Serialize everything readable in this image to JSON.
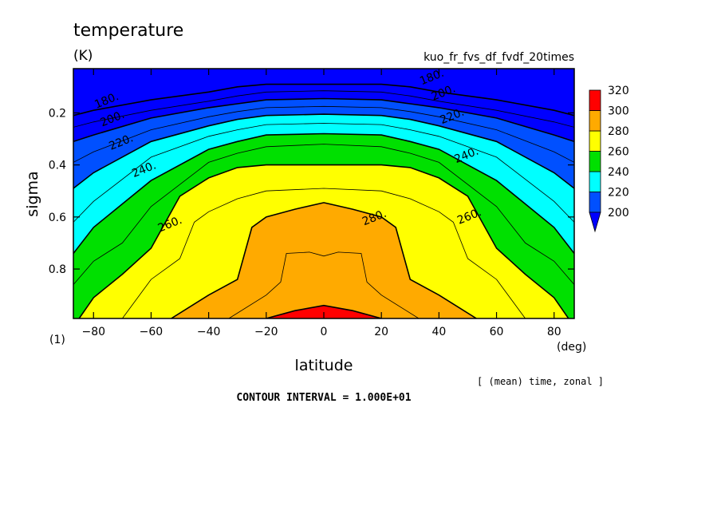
{
  "chart_data": {
    "type": "heatmap",
    "title": "temperature",
    "units": "(K)",
    "run_name": "kuo_fr_fvs_df_fvdf_20times",
    "xlabel": "latitude",
    "x_units": "(deg)",
    "ylabel": "sigma",
    "y_units": "(1)",
    "averaging_note": "[ (mean) time, zonal ]",
    "contour_interval_text": "CONTOUR INTERVAL = 1.000E+01",
    "xlim": [
      -87,
      87
    ],
    "ylim": [
      0.03,
      0.99
    ],
    "y_inverted": true,
    "x_ticks": [
      -80,
      -60,
      -40,
      -20,
      0,
      20,
      40,
      60,
      80
    ],
    "x_tick_labels": [
      "−80",
      "−60",
      "−40",
      "−20",
      "0",
      "20",
      "40",
      "60",
      "80"
    ],
    "y_ticks": [
      0.2,
      0.4,
      0.6,
      0.8
    ],
    "y_tick_labels": [
      "0.2",
      "0.4",
      "0.6",
      "0.8"
    ],
    "colorbar": {
      "levels": [
        200,
        220,
        240,
        260,
        280,
        300,
        320
      ],
      "labels": [
        "200",
        "220",
        "240",
        "260",
        "280",
        "300",
        "320"
      ],
      "colors": [
        "#0050ff",
        "#00ffff",
        "#00e000",
        "#ffff00",
        "#ffaa00",
        "#ff0000"
      ],
      "below_color": "#0000ff",
      "extend": "min"
    },
    "contour_levels": [
      180,
      190,
      200,
      210,
      220,
      230,
      240,
      250,
      260,
      270,
      280,
      290,
      300,
      310
    ],
    "bands": [
      {
        "lower": 200,
        "upper": 220,
        "color": "#0050ff"
      },
      {
        "lower": 220,
        "upper": 240,
        "color": "#00ffff"
      },
      {
        "lower": 240,
        "upper": 260,
        "color": "#00e000"
      },
      {
        "lower": 260,
        "upper": 280,
        "color": "#ffff00"
      },
      {
        "lower": 280,
        "upper": 300,
        "color": "#ffaa00"
      },
      {
        "lower": 300,
        "upper": 320,
        "color": "#ff0000"
      }
    ],
    "contours": [
      {
        "level": 180,
        "label": "180.",
        "points": [
          [
            -87,
            0.21
          ],
          [
            -80,
            0.19
          ],
          [
            -60,
            0.15
          ],
          [
            -40,
            0.12
          ],
          [
            -30,
            0.1
          ],
          [
            -20,
            0.09
          ],
          [
            0,
            0.09
          ],
          [
            20,
            0.09
          ],
          [
            30,
            0.1
          ],
          [
            40,
            0.12
          ],
          [
            60,
            0.15
          ],
          [
            80,
            0.19
          ],
          [
            87,
            0.21
          ]
        ]
      },
      {
        "level": 190,
        "label": "",
        "points": [
          [
            -87,
            0.255
          ],
          [
            -80,
            0.235
          ],
          [
            -60,
            0.19
          ],
          [
            -40,
            0.155
          ],
          [
            -30,
            0.135
          ],
          [
            -20,
            0.12
          ],
          [
            0,
            0.115
          ],
          [
            20,
            0.12
          ],
          [
            30,
            0.135
          ],
          [
            40,
            0.155
          ],
          [
            60,
            0.19
          ],
          [
            80,
            0.235
          ],
          [
            87,
            0.255
          ]
        ]
      },
      {
        "level": 200,
        "label": "200.",
        "points": [
          [
            -87,
            0.31
          ],
          [
            -80,
            0.285
          ],
          [
            -60,
            0.22
          ],
          [
            -40,
            0.18
          ],
          [
            -30,
            0.165
          ],
          [
            -20,
            0.15
          ],
          [
            0,
            0.145
          ],
          [
            20,
            0.15
          ],
          [
            30,
            0.165
          ],
          [
            40,
            0.18
          ],
          [
            60,
            0.22
          ],
          [
            80,
            0.285
          ],
          [
            87,
            0.31
          ]
        ]
      },
      {
        "level": 210,
        "label": "",
        "points": [
          [
            -87,
            0.39
          ],
          [
            -80,
            0.35
          ],
          [
            -60,
            0.265
          ],
          [
            -40,
            0.215
          ],
          [
            -30,
            0.195
          ],
          [
            -20,
            0.18
          ],
          [
            0,
            0.175
          ],
          [
            20,
            0.18
          ],
          [
            30,
            0.195
          ],
          [
            40,
            0.215
          ],
          [
            60,
            0.265
          ],
          [
            80,
            0.35
          ],
          [
            87,
            0.39
          ]
        ]
      },
      {
        "level": 220,
        "label": "220.",
        "points": [
          [
            -87,
            0.49
          ],
          [
            -80,
            0.43
          ],
          [
            -60,
            0.31
          ],
          [
            -40,
            0.25
          ],
          [
            -30,
            0.225
          ],
          [
            -20,
            0.21
          ],
          [
            0,
            0.205
          ],
          [
            20,
            0.21
          ],
          [
            30,
            0.225
          ],
          [
            40,
            0.25
          ],
          [
            60,
            0.31
          ],
          [
            80,
            0.43
          ],
          [
            87,
            0.49
          ]
        ]
      },
      {
        "level": 230,
        "label": "",
        "points": [
          [
            -87,
            0.62
          ],
          [
            -80,
            0.54
          ],
          [
            -60,
            0.37
          ],
          [
            -40,
            0.29
          ],
          [
            -30,
            0.265
          ],
          [
            -20,
            0.245
          ],
          [
            0,
            0.24
          ],
          [
            20,
            0.245
          ],
          [
            30,
            0.265
          ],
          [
            40,
            0.29
          ],
          [
            60,
            0.37
          ],
          [
            80,
            0.54
          ],
          [
            87,
            0.62
          ]
        ]
      },
      {
        "level": 240,
        "label": "240.",
        "points": [
          [
            -87,
            0.74
          ],
          [
            -80,
            0.64
          ],
          [
            -60,
            0.46
          ],
          [
            -40,
            0.34
          ],
          [
            -30,
            0.31
          ],
          [
            -20,
            0.285
          ],
          [
            0,
            0.28
          ],
          [
            20,
            0.285
          ],
          [
            30,
            0.31
          ],
          [
            40,
            0.34
          ],
          [
            60,
            0.46
          ],
          [
            80,
            0.64
          ],
          [
            87,
            0.74
          ]
        ]
      },
      {
        "level": 250,
        "label": "",
        "points": [
          [
            -87,
            0.86
          ],
          [
            -80,
            0.77
          ],
          [
            -70,
            0.7
          ],
          [
            -60,
            0.56
          ],
          [
            -40,
            0.39
          ],
          [
            -30,
            0.355
          ],
          [
            -20,
            0.33
          ],
          [
            0,
            0.32
          ],
          [
            20,
            0.33
          ],
          [
            30,
            0.355
          ],
          [
            40,
            0.39
          ],
          [
            60,
            0.56
          ],
          [
            70,
            0.7
          ],
          [
            80,
            0.77
          ],
          [
            87,
            0.86
          ]
        ]
      },
      {
        "level": 260,
        "label": "260.",
        "points": [
          [
            -85,
            0.99
          ],
          [
            -80,
            0.91
          ],
          [
            -70,
            0.82
          ],
          [
            -60,
            0.72
          ],
          [
            -50,
            0.52
          ],
          [
            -40,
            0.45
          ],
          [
            -30,
            0.41
          ],
          [
            -20,
            0.4
          ],
          [
            0,
            0.4
          ],
          [
            20,
            0.4
          ],
          [
            30,
            0.41
          ],
          [
            40,
            0.45
          ],
          [
            50,
            0.52
          ],
          [
            60,
            0.72
          ],
          [
            70,
            0.82
          ],
          [
            80,
            0.91
          ],
          [
            85,
            0.99
          ]
        ]
      },
      {
        "level": 270,
        "label": "",
        "points": [
          [
            -70,
            0.99
          ],
          [
            -60,
            0.84
          ],
          [
            -50,
            0.76
          ],
          [
            -45,
            0.62
          ],
          [
            -40,
            0.58
          ],
          [
            -30,
            0.53
          ],
          [
            -20,
            0.5
          ],
          [
            0,
            0.49
          ],
          [
            20,
            0.5
          ],
          [
            30,
            0.53
          ],
          [
            40,
            0.58
          ],
          [
            45,
            0.62
          ],
          [
            50,
            0.76
          ],
          [
            60,
            0.84
          ],
          [
            70,
            0.99
          ]
        ]
      },
      {
        "level": 280,
        "label": "280.",
        "points": [
          [
            -53,
            0.99
          ],
          [
            -40,
            0.9
          ],
          [
            -30,
            0.84
          ],
          [
            -25,
            0.64
          ],
          [
            -20,
            0.6
          ],
          [
            -10,
            0.57
          ],
          [
            0,
            0.545
          ],
          [
            10,
            0.57
          ],
          [
            20,
            0.6
          ],
          [
            25,
            0.64
          ],
          [
            30,
            0.84
          ],
          [
            40,
            0.9
          ],
          [
            53,
            0.99
          ]
        ]
      },
      {
        "level": 290,
        "label": "",
        "points": [
          [
            -33,
            0.99
          ],
          [
            -20,
            0.9
          ],
          [
            -15,
            0.85
          ],
          [
            -13,
            0.74
          ],
          [
            -5,
            0.735
          ],
          [
            0,
            0.75
          ],
          [
            5,
            0.735
          ],
          [
            13,
            0.74
          ],
          [
            15,
            0.85
          ],
          [
            20,
            0.9
          ],
          [
            33,
            0.99
          ]
        ]
      },
      {
        "level": 300,
        "label": "",
        "points": [
          [
            -20,
            0.99
          ],
          [
            -10,
            0.96
          ],
          [
            0,
            0.94
          ],
          [
            10,
            0.96
          ],
          [
            20,
            0.99
          ]
        ]
      }
    ],
    "contour_labels": [
      {
        "text": "180.",
        "x": -75,
        "y": 0.165
      },
      {
        "text": "180.",
        "x": 38,
        "y": 0.075
      },
      {
        "text": "200.",
        "x": -73,
        "y": 0.235
      },
      {
        "text": "200.",
        "x": 42,
        "y": 0.135
      },
      {
        "text": "220.",
        "x": -70,
        "y": 0.325
      },
      {
        "text": "220.",
        "x": 45,
        "y": 0.225
      },
      {
        "text": "240.",
        "x": -62,
        "y": 0.43
      },
      {
        "text": "240.",
        "x": 50,
        "y": 0.375
      },
      {
        "text": "260.",
        "x": -53,
        "y": 0.64
      },
      {
        "text": "260.",
        "x": 51,
        "y": 0.61
      },
      {
        "text": "280.",
        "x": 18,
        "y": 0.615
      }
    ]
  }
}
